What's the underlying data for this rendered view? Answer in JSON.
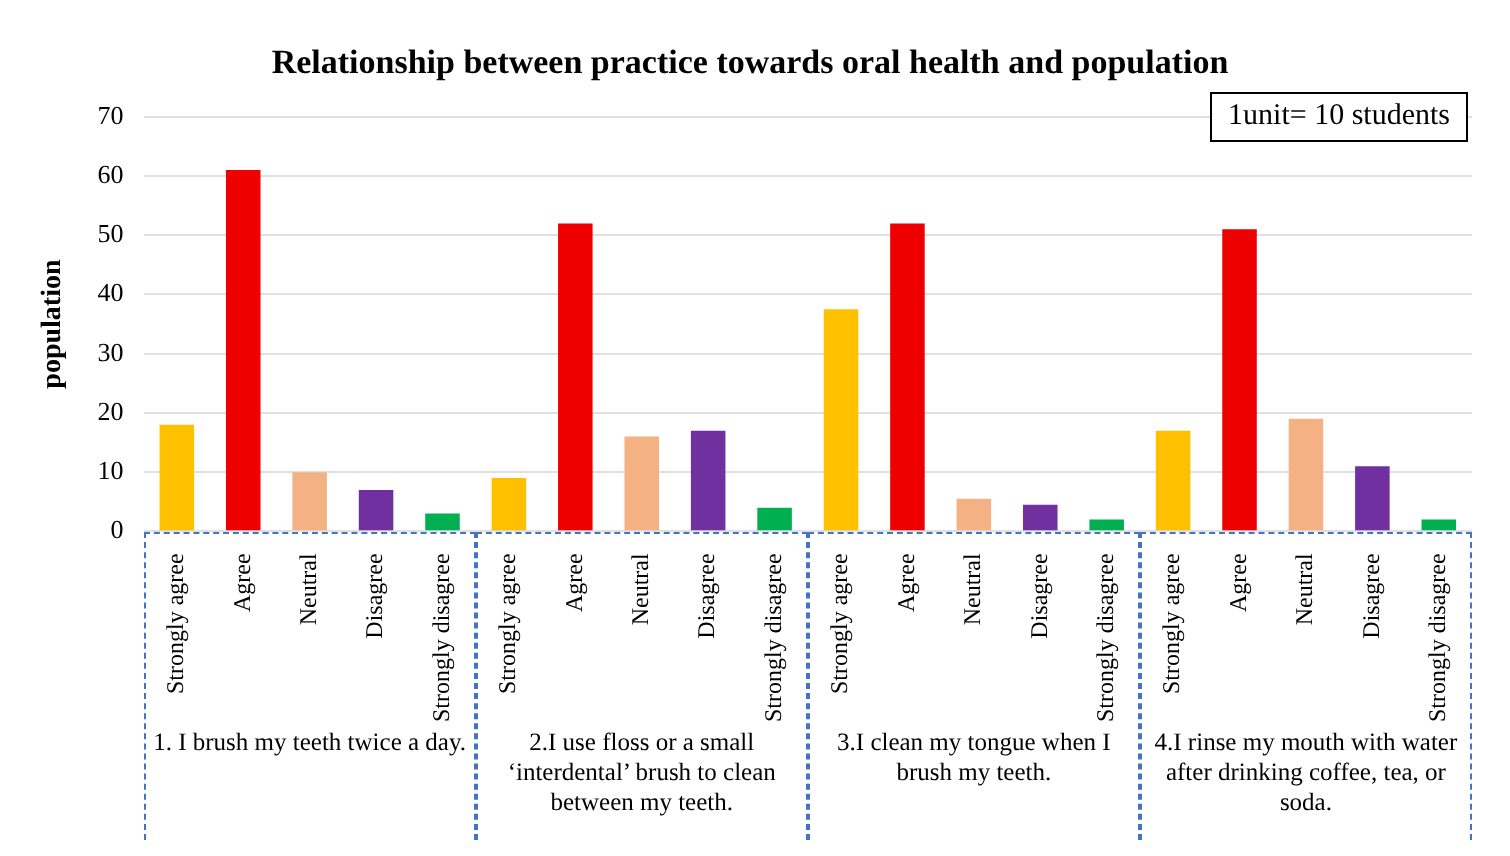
{
  "chart_data": {
    "type": "bar",
    "title": "Relationship between practice towards oral health and population",
    "ylabel": "population",
    "categories": [
      "Strongly agree",
      "Agree",
      "Neutral",
      "Disagree",
      "Strongly disagree",
      "Strongly agree",
      "Agree",
      "Neutral",
      "Disagree",
      "Strongly disagree",
      "Strongly agree",
      "Agree",
      "Neutral",
      "Disagree",
      "Strongly disagree",
      "Strongly agree",
      "Agree",
      "Neutral",
      "Disagree",
      "Strongly disagree"
    ],
    "values": [
      18,
      61,
      10,
      7,
      3,
      9,
      52,
      16,
      17,
      4,
      37.5,
      52,
      5.5,
      4.5,
      2,
      17,
      51,
      19,
      11,
      2
    ],
    "colors": [
      "#ffc000",
      "#ee0000",
      "#f4b183",
      "#7030a0",
      "#00b050",
      "#ffc000",
      "#ee0000",
      "#f4b183",
      "#7030a0",
      "#00b050",
      "#ffc000",
      "#ee0000",
      "#f4b183",
      "#7030a0",
      "#00b050",
      "#ffc000",
      "#ee0000",
      "#f4b183",
      "#7030a0",
      "#00b050"
    ],
    "ylim": [
      0,
      70
    ],
    "yticks": [
      0,
      10,
      20,
      30,
      40,
      50,
      60,
      70
    ],
    "grid": "y",
    "annotations": [
      "1. I brush my teeth twice a day.",
      "2.I use floss or a small ‘interdental’ brush to clean between my teeth.",
      "3.I clean my tongue when I brush my teeth.",
      "4.I rinse my mouth with water after drinking coffee, tea, or soda.",
      "1unit= 10 students"
    ]
  }
}
